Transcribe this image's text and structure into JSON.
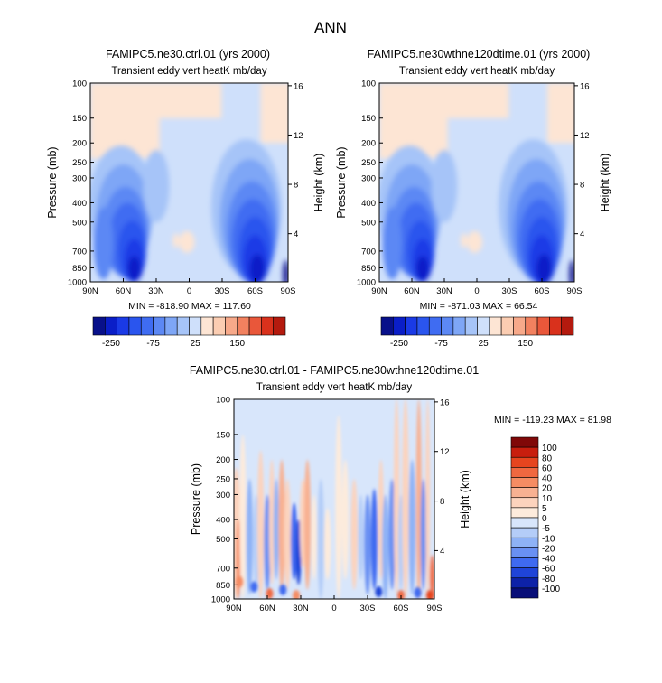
{
  "page_title": "ANN",
  "chart_data": [
    {
      "type": "heatmap",
      "title": "FAMIPC5.ne30.ctrl.01 (yrs 2000)",
      "subtitle": "Transient eddy vert heatK mb/day",
      "xlabel": "",
      "ylabel": "Pressure (mb)",
      "ylabel_right": "Height (km)",
      "x_ticks": [
        "90N",
        "60N",
        "30N",
        "0",
        "30S",
        "60S",
        "90S"
      ],
      "y_ticks": [
        100,
        150,
        200,
        250,
        300,
        400,
        500,
        700,
        850,
        1000
      ],
      "y_right_ticks": [
        16,
        12,
        8,
        4
      ],
      "ylim": [
        1000,
        100
      ],
      "xlim": [
        90,
        -90
      ],
      "stats_text": "MIN = -818.90   MAX = 117.60",
      "min": -818.9,
      "max": 117.6,
      "colorbar_labels": [
        "-250",
        "-75",
        "25",
        "150"
      ]
    },
    {
      "type": "heatmap",
      "title": "FAMIPC5.ne30wthne120dtime.01 (yrs 2000)",
      "subtitle": "Transient eddy vert heatK mb/day",
      "xlabel": "",
      "ylabel": "Pressure (mb)",
      "ylabel_right": "Height (km)",
      "x_ticks": [
        "90N",
        "60N",
        "30N",
        "0",
        "30S",
        "60S",
        "90S"
      ],
      "y_ticks": [
        100,
        150,
        200,
        250,
        300,
        400,
        500,
        700,
        850,
        1000
      ],
      "y_right_ticks": [
        16,
        12,
        8,
        4
      ],
      "ylim": [
        1000,
        100
      ],
      "xlim": [
        90,
        -90
      ],
      "stats_text": "MIN = -871.03   MAX =  66.54",
      "min": -871.03,
      "max": 66.54,
      "colorbar_labels": [
        "-250",
        "-75",
        "25",
        "150"
      ]
    },
    {
      "type": "heatmap",
      "title": "FAMIPC5.ne30.ctrl.01 - FAMIPC5.ne30wthne120dtime.01",
      "subtitle": "Transient eddy vert heatK mb/day",
      "xlabel": "",
      "ylabel": "Pressure (mb)",
      "ylabel_right": "Height (km)",
      "x_ticks": [
        "90N",
        "60N",
        "30N",
        "0",
        "30S",
        "60S",
        "90S"
      ],
      "y_ticks": [
        100,
        150,
        200,
        250,
        300,
        400,
        500,
        700,
        850,
        1000
      ],
      "y_right_ticks": [
        16,
        12,
        8,
        4
      ],
      "ylim": [
        1000,
        100
      ],
      "xlim": [
        90,
        -90
      ],
      "stats_text": "MIN = -119.23   MAX =  81.98",
      "min": -119.23,
      "max": 81.98,
      "colorbar_labels": [
        "100",
        "80",
        "60",
        "40",
        "20",
        "10",
        "5",
        "0",
        "-5",
        "-10",
        "-20",
        "-40",
        "-60",
        "-80",
        "-100"
      ]
    }
  ],
  "colors": {
    "seq_palette": [
      "#08108a",
      "#0a1ec8",
      "#1a3ae6",
      "#2a55ee",
      "#3f6cf2",
      "#5c88f4",
      "#7ea6f6",
      "#a6c4f8",
      "#cfe0fb",
      "#fde5d4",
      "#fbcdb2",
      "#f7a98a",
      "#f2815f",
      "#e9573a",
      "#d9311c",
      "#b41a0e",
      "#800808"
    ],
    "diff_palette": [
      "#800808",
      "#c81e0e",
      "#e6451f",
      "#f06840",
      "#f58c63",
      "#f8b192",
      "#fcd3bd",
      "#fdebdc",
      "#d8e6fb",
      "#b4cdf8",
      "#8eb2f6",
      "#6990f3",
      "#3f6af0",
      "#1f44d8",
      "#0d22a8",
      "#080e78"
    ]
  }
}
